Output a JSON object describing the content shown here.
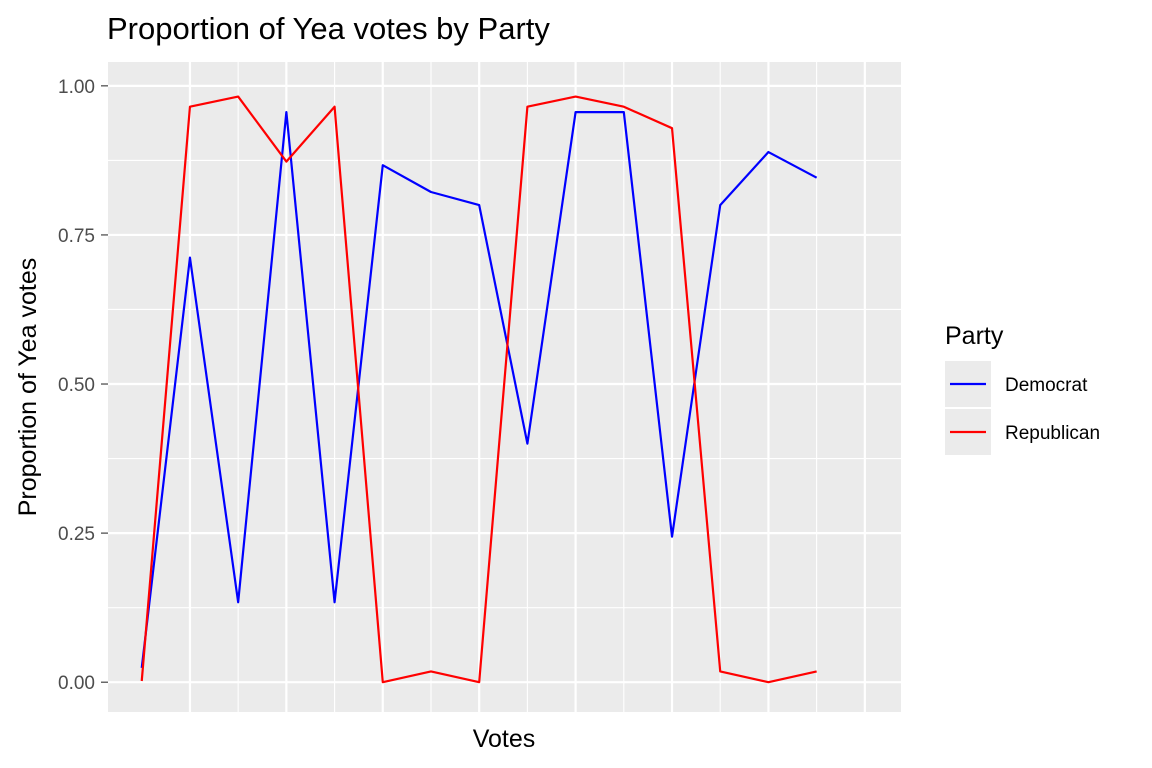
{
  "chart_data": {
    "type": "line",
    "title": "Proportion of Yea votes by Party",
    "xlabel": "Votes",
    "ylabel": "Proportion of Yea votes",
    "ylim": [
      -0.05,
      1.04
    ],
    "yticks": [
      0.0,
      0.25,
      0.5,
      0.75,
      1.0
    ],
    "ytick_labels": [
      "0.00",
      "0.25",
      "0.50",
      "0.75",
      "1.00"
    ],
    "x": [
      1,
      2,
      3,
      4,
      5,
      6,
      7,
      8,
      9,
      10,
      11,
      12,
      13,
      14,
      15,
      16
    ],
    "xlim": [
      0.3,
      16.75
    ],
    "x_grid_major": [
      2,
      4,
      6,
      8,
      10,
      12,
      14,
      16
    ],
    "x_tick_labels_shown": false,
    "grid": true,
    "legend": {
      "title": "Party",
      "position": "right"
    },
    "series": [
      {
        "name": "Democrat",
        "color": "#0000ff",
        "values": [
          0.024,
          0.712,
          0.134,
          0.956,
          0.134,
          0.867,
          0.822,
          0.8,
          0.4,
          0.956,
          0.956,
          0.244,
          0.8,
          0.889,
          0.846,
          null
        ]
      },
      {
        "name": "Republican",
        "color": "#ff0000",
        "values": [
          0.002,
          0.965,
          0.982,
          0.873,
          0.965,
          0.0,
          0.018,
          0.0,
          0.965,
          0.982,
          0.965,
          0.929,
          0.018,
          0.0,
          0.018,
          null
        ]
      }
    ]
  }
}
